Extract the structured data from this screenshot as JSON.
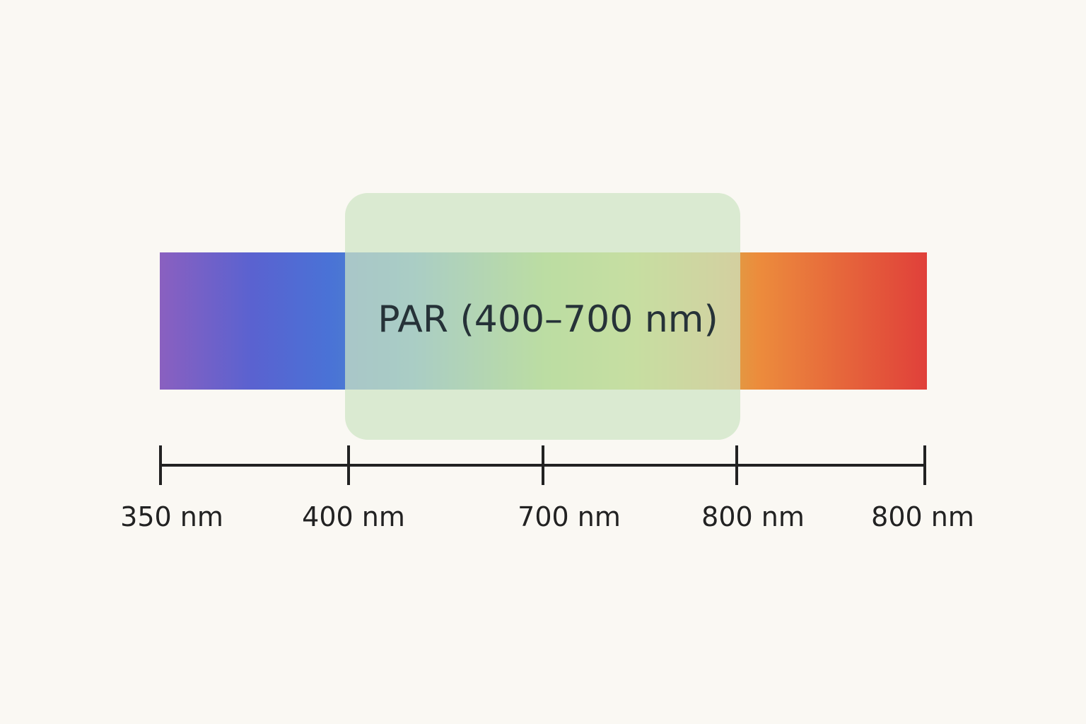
{
  "spectrum": {
    "par_label": "PAR (400–700 nm)"
  },
  "scale": {
    "ticks": [
      "350 nm",
      "400 nm",
      "700 nm",
      "800 nm",
      "800 nm"
    ]
  }
}
